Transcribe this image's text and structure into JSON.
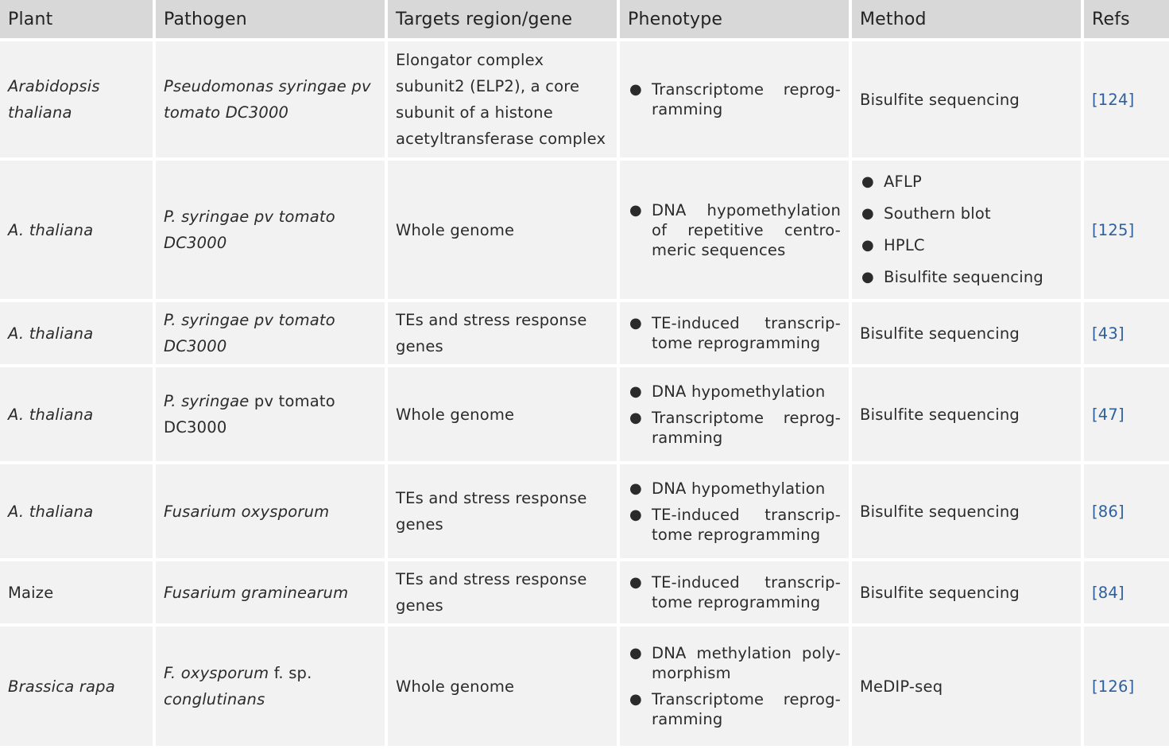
{
  "headers": [
    "Plant",
    "Pathogen",
    "Targets region/gene",
    "Phenotype",
    "Method",
    "Refs"
  ],
  "rows": [
    {
      "plant": "Arabidopsis thaliana",
      "pathogen": [
        {
          "text": "Pseudomonas syringae pv tomato DC3000",
          "italic": true
        }
      ],
      "target": "Elongator complex subunit2 (ELP2), a core subunit of a histone acetyltransferase complex",
      "phenotype": [
        "Transcriptome reprog-ramming"
      ],
      "method": [
        "Bisulfite sequencing"
      ],
      "method_list": false,
      "ref": "[124]"
    },
    {
      "plant": "A. thaliana",
      "pathogen": [
        {
          "text": "P. syringae pv tomato DC3000",
          "italic": true
        }
      ],
      "target": "Whole genome",
      "phenotype": [
        "DNA hypomethylation of repetitive centro-meric sequences"
      ],
      "method": [
        "AFLP",
        "Southern blot",
        "HPLC",
        "Bisulfite sequencing"
      ],
      "method_list": true,
      "ref": "[125]"
    },
    {
      "plant": "A. thaliana",
      "pathogen": [
        {
          "text": "P. syringae pv tomato DC3000",
          "italic": true
        }
      ],
      "target": "TEs and stress response genes",
      "phenotype": [
        "TE-induced transcrip-tome reprogramming"
      ],
      "method": [
        "Bisulfite sequencing"
      ],
      "method_list": false,
      "ref": "[43]"
    },
    {
      "plant": "A. thaliana",
      "pathogen": [
        {
          "text": "P. syringae",
          "italic": true
        },
        {
          "text": " pv tomato DC3000",
          "italic": false
        }
      ],
      "target": "Whole genome",
      "phenotype": [
        "DNA hypomethylation",
        "Transcriptome reprog-ramming"
      ],
      "method": [
        "Bisulfite sequencing"
      ],
      "method_list": false,
      "ref": "[47]"
    },
    {
      "plant": "A. thaliana",
      "pathogen": [
        {
          "text": "Fusarium oxysporum",
          "italic": true
        }
      ],
      "target": "TEs and stress response genes",
      "phenotype": [
        "DNA hypomethylation",
        "TE-induced transcrip-tome reprogramming"
      ],
      "method": [
        "Bisulfite sequencing"
      ],
      "method_list": false,
      "ref": "[86]"
    },
    {
      "plant": "Maize",
      "plant_italic": false,
      "pathogen": [
        {
          "text": "Fusarium graminearum",
          "italic": true
        }
      ],
      "target": "TEs and stress response genes",
      "phenotype": [
        "TE-induced transcrip-tome reprogramming"
      ],
      "method": [
        "Bisulfite sequencing"
      ],
      "method_list": false,
      "ref": "[84]"
    },
    {
      "plant": "Brassica rapa",
      "pathogen": [
        {
          "text": "F. oxysporum",
          "italic": true
        },
        {
          "text": " f. sp. ",
          "italic": false
        },
        {
          "text": "conglutinans",
          "italic": true
        }
      ],
      "target": "Whole genome",
      "phenotype": [
        "DNA methylation poly-morphism",
        "Transcriptome reprog-ramming"
      ],
      "method": [
        "MeDIP-seq"
      ],
      "method_list": false,
      "ref": "[126]"
    }
  ],
  "colors": {
    "header_bg": "#d8d8d8",
    "cell_bg": "#f2f2f2",
    "ref_link": "#2c5f9e",
    "text": "#2b2b2b"
  }
}
